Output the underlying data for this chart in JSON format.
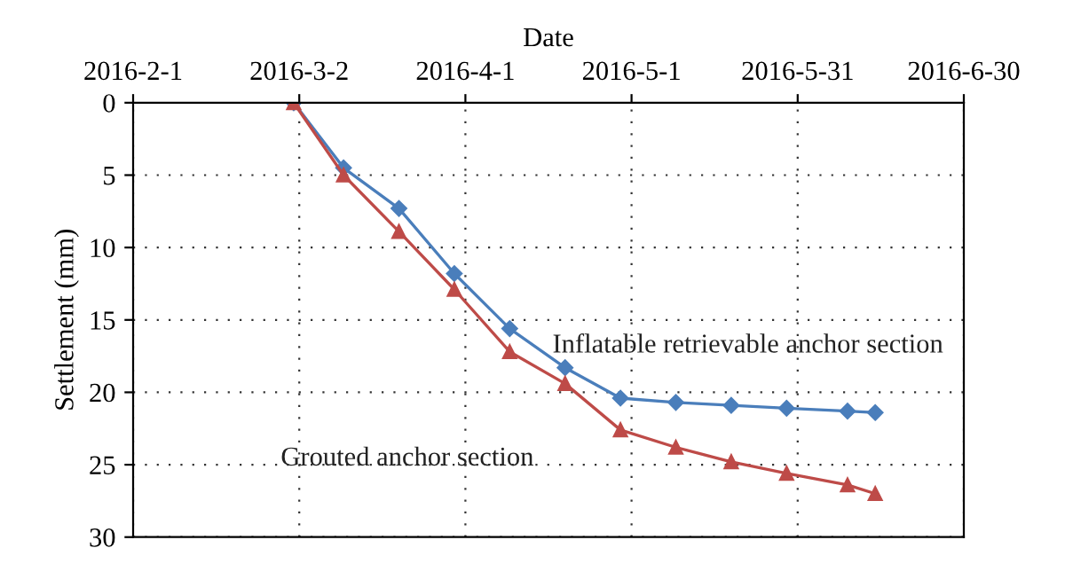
{
  "chart_data": {
    "type": "line",
    "xlabel": "Date",
    "ylabel": "Settlement (mm)",
    "x": [
      "2016-03-01",
      "2016-03-10",
      "2016-03-20",
      "2016-03-30",
      "2016-04-09",
      "2016-04-19",
      "2016-04-29",
      "2016-05-09",
      "2016-05-19",
      "2016-05-29",
      "2016-06-09",
      "2016-06-14"
    ],
    "series": [
      {
        "name": "Inflatable retrievable anchor section",
        "color": "#4a7ebb",
        "marker": "diamond",
        "values": [
          0,
          4.5,
          7.3,
          11.8,
          15.6,
          18.3,
          20.4,
          20.7,
          20.9,
          21.1,
          21.3,
          21.4
        ]
      },
      {
        "name": "Grouted anchor section",
        "color": "#be4b48",
        "marker": "triangle",
        "values": [
          0,
          5.0,
          8.9,
          12.9,
          17.2,
          19.4,
          22.6,
          23.8,
          24.8,
          25.6,
          26.4,
          27.0
        ]
      }
    ],
    "xlim": [
      "2016-02-01",
      "2016-06-30"
    ],
    "xticks": [
      {
        "value": "2016-02-01",
        "label": "2016-2-1"
      },
      {
        "value": "2016-03-02",
        "label": "2016-3-2"
      },
      {
        "value": "2016-04-01",
        "label": "2016-4-1"
      },
      {
        "value": "2016-05-01",
        "label": "2016-5-1"
      },
      {
        "value": "2016-05-31",
        "label": "2016-5-31"
      },
      {
        "value": "2016-06-30",
        "label": "2016-6-30"
      }
    ],
    "ylim": [
      30,
      0
    ],
    "yticks": [
      0,
      5,
      10,
      15,
      20,
      25,
      30
    ],
    "grid": true,
    "legend": false,
    "line_style": "solid"
  }
}
